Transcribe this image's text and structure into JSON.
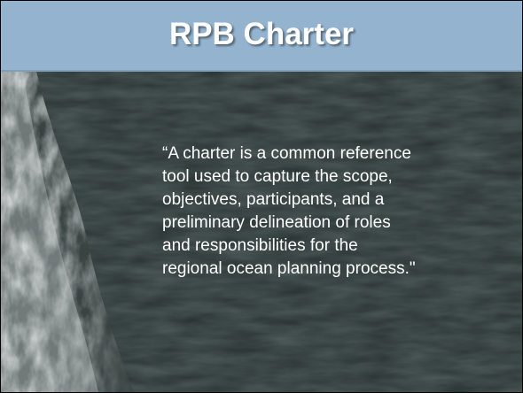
{
  "slide": {
    "title": "RPB Charter",
    "quote_lines": [
      "“A charter is a common reference",
      "tool used to capture the scope,",
      "objectives, participants, and a",
      "preliminary delineation of roles",
      "and responsibilities for the",
      "regional ocean planning process.\""
    ]
  }
}
